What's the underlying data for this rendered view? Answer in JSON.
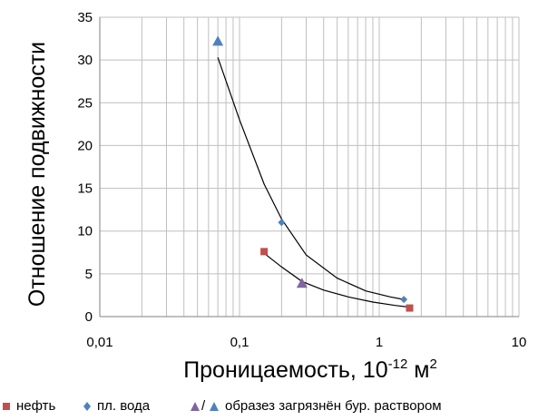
{
  "chart_data": {
    "type": "scatter",
    "x_scale": "log",
    "xlim": [
      0.01,
      10
    ],
    "ylim": [
      0,
      35
    ],
    "x_ticks": [
      "0,01",
      "0,1",
      "1",
      "10"
    ],
    "y_ticks": [
      "0",
      "5",
      "10",
      "15",
      "20",
      "25",
      "30",
      "35"
    ],
    "xlabel": "Проницаемость, 10",
    "xlabel_exp": "-12",
    "xlabel_unit": " м",
    "xlabel_unit_exp": "2",
    "ylabel": "Отношение подвижности",
    "grid": true,
    "legend_position": "bottom",
    "series": [
      {
        "name": "нефть",
        "marker": "square",
        "color": "#C0504D",
        "points": [
          {
            "x": 0.15,
            "y": 7.6
          },
          {
            "x": 1.65,
            "y": 1.0
          }
        ]
      },
      {
        "name": "пл. вода",
        "marker": "diamond",
        "color": "#4F81BD",
        "points": [
          {
            "x": 0.2,
            "y": 11.0
          },
          {
            "x": 1.5,
            "y": 2.0
          }
        ]
      },
      {
        "name": "образез загрязнён бур. раствором",
        "marker": "triangle",
        "points": [
          {
            "x": 0.07,
            "y": 32.2,
            "color": "#4F81BD"
          },
          {
            "x": 0.28,
            "y": 3.9,
            "color": "#8064A2"
          }
        ]
      }
    ],
    "trendlines": [
      {
        "x": [
          0.07,
          0.1,
          0.15,
          0.2,
          0.3,
          0.5,
          0.8,
          1.2,
          1.5
        ],
        "y": [
          30.3,
          23.0,
          15.5,
          11.4,
          7.2,
          4.5,
          3.0,
          2.3,
          2.0
        ]
      },
      {
        "x": [
          0.15,
          0.2,
          0.28,
          0.4,
          0.6,
          0.9,
          1.3,
          1.65
        ],
        "y": [
          7.4,
          5.8,
          4.1,
          3.1,
          2.3,
          1.7,
          1.3,
          1.1
        ]
      }
    ]
  },
  "legend": {
    "oil_label": "нефть",
    "water_label": "пл. вода",
    "separator": "/",
    "contaminated_label": "образез загрязнён бур. раствором"
  },
  "colors": {
    "oil": "#C0504D",
    "water": "#4F81BD",
    "contaminated_a": "#8064A2",
    "contaminated_b": "#4F81BD",
    "grid": "#BFBFBF",
    "axis": "#808080",
    "trend": "#000000"
  }
}
